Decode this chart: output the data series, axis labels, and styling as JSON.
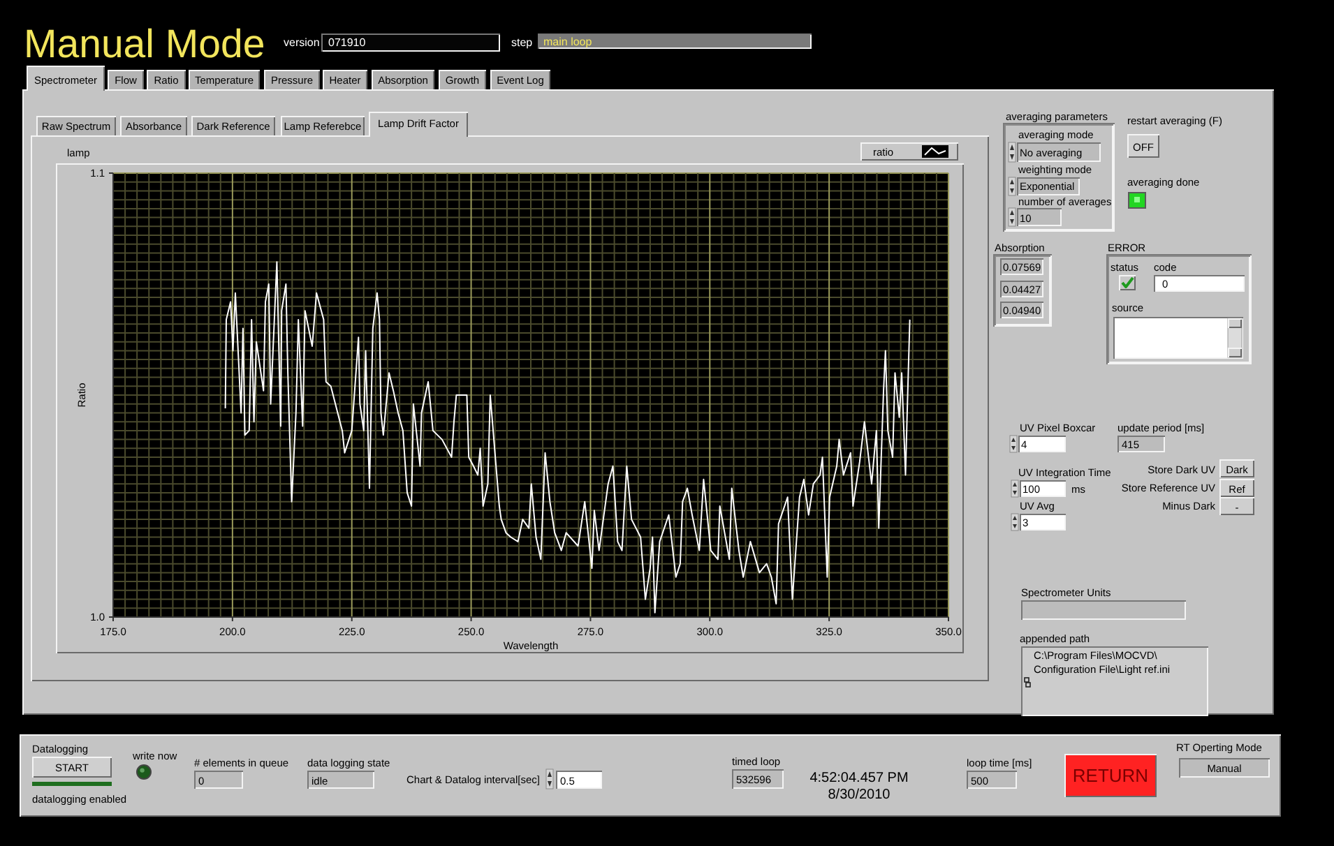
{
  "chart_data": {
    "type": "line",
    "title": "Manual Mode",
    "xlabel": "Wavelength",
    "ylabel": "Ratio",
    "x": [
      198.5,
      198.7,
      199.6,
      200.1,
      200.6,
      201.8,
      202.2,
      202.6,
      203.5,
      204.0,
      204.5,
      205.0,
      206.5,
      206.9,
      207.6,
      208.0,
      209.3,
      210.1,
      210.3,
      211.2,
      211.6,
      212.4,
      213.3,
      213.8,
      214.7,
      215.2,
      216.7,
      217.6,
      219.1,
      219.6,
      220.6,
      223.0,
      223.5,
      225.0,
      226.4,
      226.7,
      227.5,
      227.9,
      228.7,
      229.4,
      230.3,
      230.8,
      231.1,
      231.6,
      232.8,
      233.7,
      234.7,
      235.7,
      236.6,
      237.5,
      237.9,
      239.3,
      239.6,
      241.0,
      242.0,
      243.9,
      245.9,
      246.4,
      246.9,
      249.1,
      249.5,
      250.5,
      251.4,
      251.9,
      252.5,
      253.5,
      254.0,
      255.9,
      256.3,
      257.3,
      258.3,
      259.8,
      260.8,
      262.1,
      262.6,
      263.6,
      264.6,
      265.5,
      266.5,
      267.5,
      268.9,
      269.9,
      272.4,
      273.8,
      275.3,
      275.8,
      276.8,
      278.7,
      279.7,
      280.7,
      281.6,
      282.6,
      283.6,
      285.5,
      286.5,
      287.5,
      288.0,
      288.5,
      289.5,
      291.4,
      292.9,
      293.8,
      294.3,
      295.3,
      296.3,
      297.8,
      298.7,
      300.2,
      301.7,
      302.1,
      304.1,
      304.6,
      306.1,
      307.0,
      308.5,
      310.4,
      311.9,
      312.9,
      313.9,
      314.4,
      316.3,
      317.3,
      318.8,
      319.7,
      320.7,
      321.7,
      323.1,
      323.6,
      324.6,
      325.1,
      326.6,
      327.1,
      328.0,
      329.5,
      330.0,
      331.4,
      332.4,
      333.9,
      334.9,
      335.4,
      336.4,
      336.8,
      337.3,
      338.3,
      338.8,
      339.7,
      340.2,
      341.0,
      341.4,
      341.9
    ],
    "series": [
      {
        "name": "ratio",
        "color": "#ffffff",
        "values": [
          1.047,
          1.067,
          1.071,
          1.06,
          1.073,
          1.046,
          1.065,
          1.041,
          1.042,
          1.067,
          1.044,
          1.062,
          1.051,
          1.071,
          1.075,
          1.048,
          1.08,
          1.043,
          1.069,
          1.075,
          1.055,
          1.026,
          1.046,
          1.067,
          1.043,
          1.069,
          1.061,
          1.073,
          1.067,
          1.053,
          1.052,
          1.042,
          1.037,
          1.042,
          1.063,
          1.048,
          1.042,
          1.06,
          1.029,
          1.065,
          1.073,
          1.067,
          1.046,
          1.041,
          1.055,
          1.051,
          1.046,
          1.042,
          1.028,
          1.025,
          1.048,
          1.034,
          1.046,
          1.053,
          1.042,
          1.04,
          1.036,
          1.044,
          1.05,
          1.05,
          1.036,
          1.034,
          1.032,
          1.038,
          1.025,
          1.03,
          1.05,
          1.025,
          1.022,
          1.019,
          1.018,
          1.017,
          1.022,
          1.02,
          1.03,
          1.018,
          1.013,
          1.037,
          1.026,
          1.019,
          1.015,
          1.019,
          1.016,
          1.026,
          1.011,
          1.024,
          1.015,
          1.03,
          1.034,
          1.017,
          1.015,
          1.034,
          1.022,
          1.018,
          1.004,
          1.011,
          1.018,
          1.001,
          1.017,
          1.023,
          1.009,
          1.012,
          1.026,
          1.029,
          1.023,
          1.015,
          1.031,
          1.015,
          1.013,
          1.025,
          1.013,
          1.029,
          1.015,
          1.009,
          1.017,
          1.01,
          1.012,
          1.009,
          1.003,
          1.021,
          1.027,
          1.004,
          1.027,
          1.031,
          1.023,
          1.03,
          1.032,
          1.036,
          1.009,
          1.027,
          1.034,
          1.04,
          1.032,
          1.037,
          1.025,
          1.035,
          1.044,
          1.03,
          1.042,
          1.02,
          1.051,
          1.06,
          1.042,
          1.036,
          1.055,
          1.045,
          1.055,
          1.032,
          1.048,
          1.067
        ]
      }
    ],
    "xlim": [
      175,
      350
    ],
    "xticks": [
      {
        "value": 175,
        "label": "175.0"
      },
      {
        "value": 200,
        "label": "200.0"
      },
      {
        "value": 225,
        "label": "225.0"
      },
      {
        "value": 250,
        "label": "250.0"
      },
      {
        "value": 275,
        "label": "275.0"
      },
      {
        "value": 300,
        "label": "300.0"
      },
      {
        "value": 325,
        "label": "325.0"
      },
      {
        "value": 350,
        "label": "350.0"
      }
    ],
    "ylim": [
      1,
      1.1
    ],
    "yticks": [
      {
        "value": 1,
        "label": "1.0"
      },
      1.1
    ],
    "grid": true,
    "legend": "top right",
    "annotations": [
      "version",
      "071910",
      "step",
      "main loop",
      "Spectrometer",
      "Flow",
      "Ratio",
      "Temperature",
      "Pressure",
      "Heater",
      "Absorption",
      "Growth",
      "Event Log",
      "Raw Spectrum",
      "Absorbance",
      "Dark Reference",
      "Lamp Referebce",
      "Lamp Drift Factor",
      "lamp",
      "averaging parameters",
      "averaging mode",
      "No averaging",
      "weighting mode",
      "Exponential",
      "number of averages",
      "10",
      "restart averaging (F)",
      "OFF",
      "averaging done",
      "Absorption",
      "0.07569",
      "0.04427",
      "0.04940",
      "ERROR",
      "status",
      "code",
      "0",
      "source",
      "UV Pixel Boxcar",
      "4",
      "update period [ms]",
      "415",
      "UV Integration Time",
      "100",
      "ms",
      "UV Avg",
      "3",
      "Store Dark UV",
      "Dark",
      "Store Reference UV",
      "Ref",
      "Minus Dark",
      "-",
      "Spectrometer Units",
      "appended path",
      "C:\\Program Files\\MOCVD\\",
      "Configuration File\\Light ref.ini",
      "Datalogging",
      "START",
      "datalogging enabled",
      "write now",
      "# elements in queue",
      "0",
      "data logging state",
      "idle",
      "Chart & Datalog interval[sec]",
      "0.5",
      "timed loop",
      "532596",
      "4:52:04.457 PM",
      "8/30/2010",
      "loop time [ms]",
      "500",
      "RETURN",
      "RT Operting Mode",
      "Manual"
    ]
  }
}
